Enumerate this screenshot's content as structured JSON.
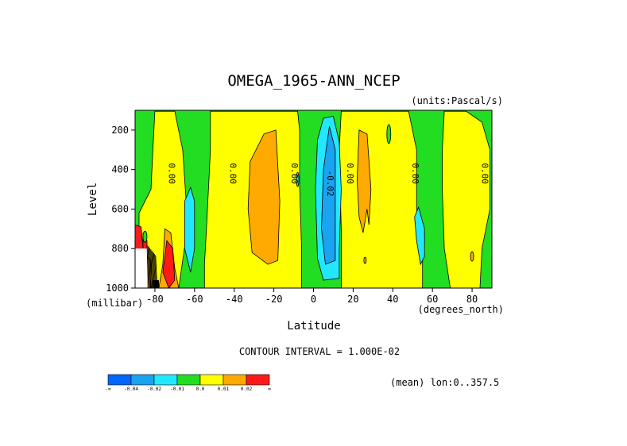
{
  "chart_data": {
    "type": "contour",
    "title": "OMEGA_1965-ANN_NCEP",
    "units_label": "(units:Pascal/s)",
    "xlabel": "Latitude",
    "ylabel": "Level",
    "x_units_label": "(degrees_north)",
    "y_units_label": "(millibar)",
    "xlim": [
      -90,
      90
    ],
    "ylim": [
      1000,
      100
    ],
    "x_ticks": [
      -80,
      -60,
      -40,
      -20,
      0,
      20,
      40,
      60,
      80
    ],
    "x_tick_labels": [
      "-80",
      "-60",
      "-40",
      "-20",
      "0",
      "20",
      "40",
      "60",
      "80"
    ],
    "y_ticks": [
      200,
      400,
      600,
      800,
      1000
    ],
    "y_tick_labels": [
      "200",
      "400",
      "600",
      "800",
      "1000"
    ],
    "contour_interval_text": "CONTOUR INTERVAL = 1.000E-02",
    "mean_text": "(mean) lon:0..357.5",
    "colorbar": {
      "colors": [
        "#0066ff",
        "#1aa3f0",
        "#22e8ff",
        "#22dd22",
        "#ffff00",
        "#ffaa00",
        "#ff1a1a"
      ],
      "labels": [
        "-∞",
        "-0.04",
        "-0.02",
        "-0.01",
        "0.0",
        "0.01",
        "0.02",
        "∞"
      ]
    },
    "contour_labels": [
      {
        "lat": -73,
        "lev": 420,
        "text": "0.00"
      },
      {
        "lat": -42,
        "lev": 420,
        "text": "0.00"
      },
      {
        "lat": -11,
        "lev": 420,
        "text": "0.00"
      },
      {
        "lat": 7,
        "lev": 470,
        "text": "-0.02"
      },
      {
        "lat": 17,
        "lev": 420,
        "text": "0.00"
      },
      {
        "lat": 50,
        "lev": 420,
        "text": "0.00"
      },
      {
        "lat": 85,
        "lev": 420,
        "text": "0.00"
      }
    ],
    "regions": [
      {
        "value": 0.005,
        "color": "#ffff00",
        "points": [
          [
            -80,
            105
          ],
          [
            -70,
            105
          ],
          [
            -66,
            300
          ],
          [
            -64,
            600
          ],
          [
            -64,
            720
          ],
          [
            -68,
            1000
          ],
          [
            -88,
            1000
          ],
          [
            -88,
            620
          ],
          [
            -82,
            500
          ],
          [
            -81,
            300
          ]
        ]
      },
      {
        "value": 0.005,
        "color": "#ffff00",
        "points": [
          [
            -52,
            105
          ],
          [
            -8,
            105
          ],
          [
            -7,
            200
          ],
          [
            -7,
            480
          ],
          [
            -6,
            800
          ],
          [
            -6,
            1000
          ],
          [
            -55,
            1000
          ],
          [
            -55,
            880
          ],
          [
            -54,
            700
          ],
          [
            -53,
            500
          ],
          [
            -52,
            300
          ]
        ]
      },
      {
        "value": 0.005,
        "color": "#ffff00",
        "points": [
          [
            14,
            105
          ],
          [
            48,
            105
          ],
          [
            52,
            300
          ],
          [
            52,
            600
          ],
          [
            55,
            800
          ],
          [
            55,
            1000
          ],
          [
            14,
            1000
          ],
          [
            14,
            700
          ],
          [
            13,
            300
          ]
        ]
      },
      {
        "value": 0.005,
        "color": "#ffff00",
        "points": [
          [
            66,
            105
          ],
          [
            77,
            105
          ],
          [
            85,
            160
          ],
          [
            89,
            300
          ],
          [
            89,
            600
          ],
          [
            85,
            800
          ],
          [
            84,
            1000
          ],
          [
            69,
            1000
          ],
          [
            66,
            800
          ],
          [
            65,
            500
          ],
          [
            65,
            300
          ]
        ]
      },
      {
        "value": -0.005,
        "color": "#22e8ff",
        "points": [
          [
            10,
            130
          ],
          [
            13,
            260
          ],
          [
            14,
            500
          ],
          [
            13,
            800
          ],
          [
            13,
            950
          ],
          [
            5,
            960
          ],
          [
            2,
            850
          ],
          [
            1,
            500
          ],
          [
            2,
            250
          ],
          [
            5,
            140
          ]
        ]
      },
      {
        "value": -0.005,
        "color": "#22e8ff",
        "points": [
          [
            -62,
            490
          ],
          [
            -60,
            560
          ],
          [
            -60,
            800
          ],
          [
            -62,
            920
          ],
          [
            -65,
            800
          ],
          [
            -65,
            560
          ]
        ]
      },
      {
        "value": -0.005,
        "color": "#22e8ff",
        "points": [
          [
            53,
            590
          ],
          [
            56,
            700
          ],
          [
            56,
            840
          ],
          [
            54,
            880
          ],
          [
            52,
            760
          ],
          [
            51,
            640
          ]
        ]
      },
      {
        "value": -0.015,
        "color": "#1aa3f0",
        "points": [
          [
            8,
            180
          ],
          [
            11,
            300
          ],
          [
            11,
            560
          ],
          [
            11,
            860
          ],
          [
            6,
            880
          ],
          [
            4,
            700
          ],
          [
            5,
            400
          ]
        ]
      },
      {
        "value": 0.015,
        "color": "#ffaa00",
        "points": [
          [
            -25,
            220
          ],
          [
            -19,
            200
          ],
          [
            -17,
            560
          ],
          [
            -18,
            860
          ],
          [
            -23,
            880
          ],
          [
            -31,
            820
          ],
          [
            -33,
            600
          ],
          [
            -32,
            360
          ]
        ]
      },
      {
        "value": 0.015,
        "color": "#ffaa00",
        "points": [
          [
            23,
            200
          ],
          [
            27,
            220
          ],
          [
            29,
            500
          ],
          [
            28,
            680
          ],
          [
            27,
            600
          ],
          [
            25,
            720
          ],
          [
            23,
            640
          ],
          [
            22,
            450
          ]
        ]
      },
      {
        "value": 0.015,
        "color": "#ffaa00",
        "points": [
          [
            -75,
            700
          ],
          [
            -72,
            720
          ],
          [
            -70,
            900
          ],
          [
            -68,
            1000
          ],
          [
            -78,
            1000
          ],
          [
            -76,
            880
          ]
        ]
      },
      {
        "value": 0.015,
        "color": "#ffaa00",
        "points": [
          [
            -86,
            820
          ],
          [
            -82,
            860
          ],
          [
            -82,
            1000
          ],
          [
            -86,
            1000
          ]
        ]
      },
      {
        "value": 0.025,
        "color": "#ff1a1a",
        "points": [
          [
            -90,
            680
          ],
          [
            -87,
            690
          ],
          [
            -86,
            800
          ],
          [
            -90,
            820
          ]
        ]
      },
      {
        "value": 0.025,
        "color": "#ff1a1a",
        "points": [
          [
            -74,
            760
          ],
          [
            -71,
            800
          ],
          [
            -70,
            960
          ],
          [
            -73,
            1000
          ],
          [
            -76,
            920
          ]
        ]
      },
      {
        "value": 0.025,
        "color": "#ff1a1a",
        "points": [
          [
            -86,
            720
          ],
          [
            -84,
            760
          ],
          [
            -84,
            820
          ],
          [
            -86,
            800
          ]
        ]
      }
    ]
  }
}
